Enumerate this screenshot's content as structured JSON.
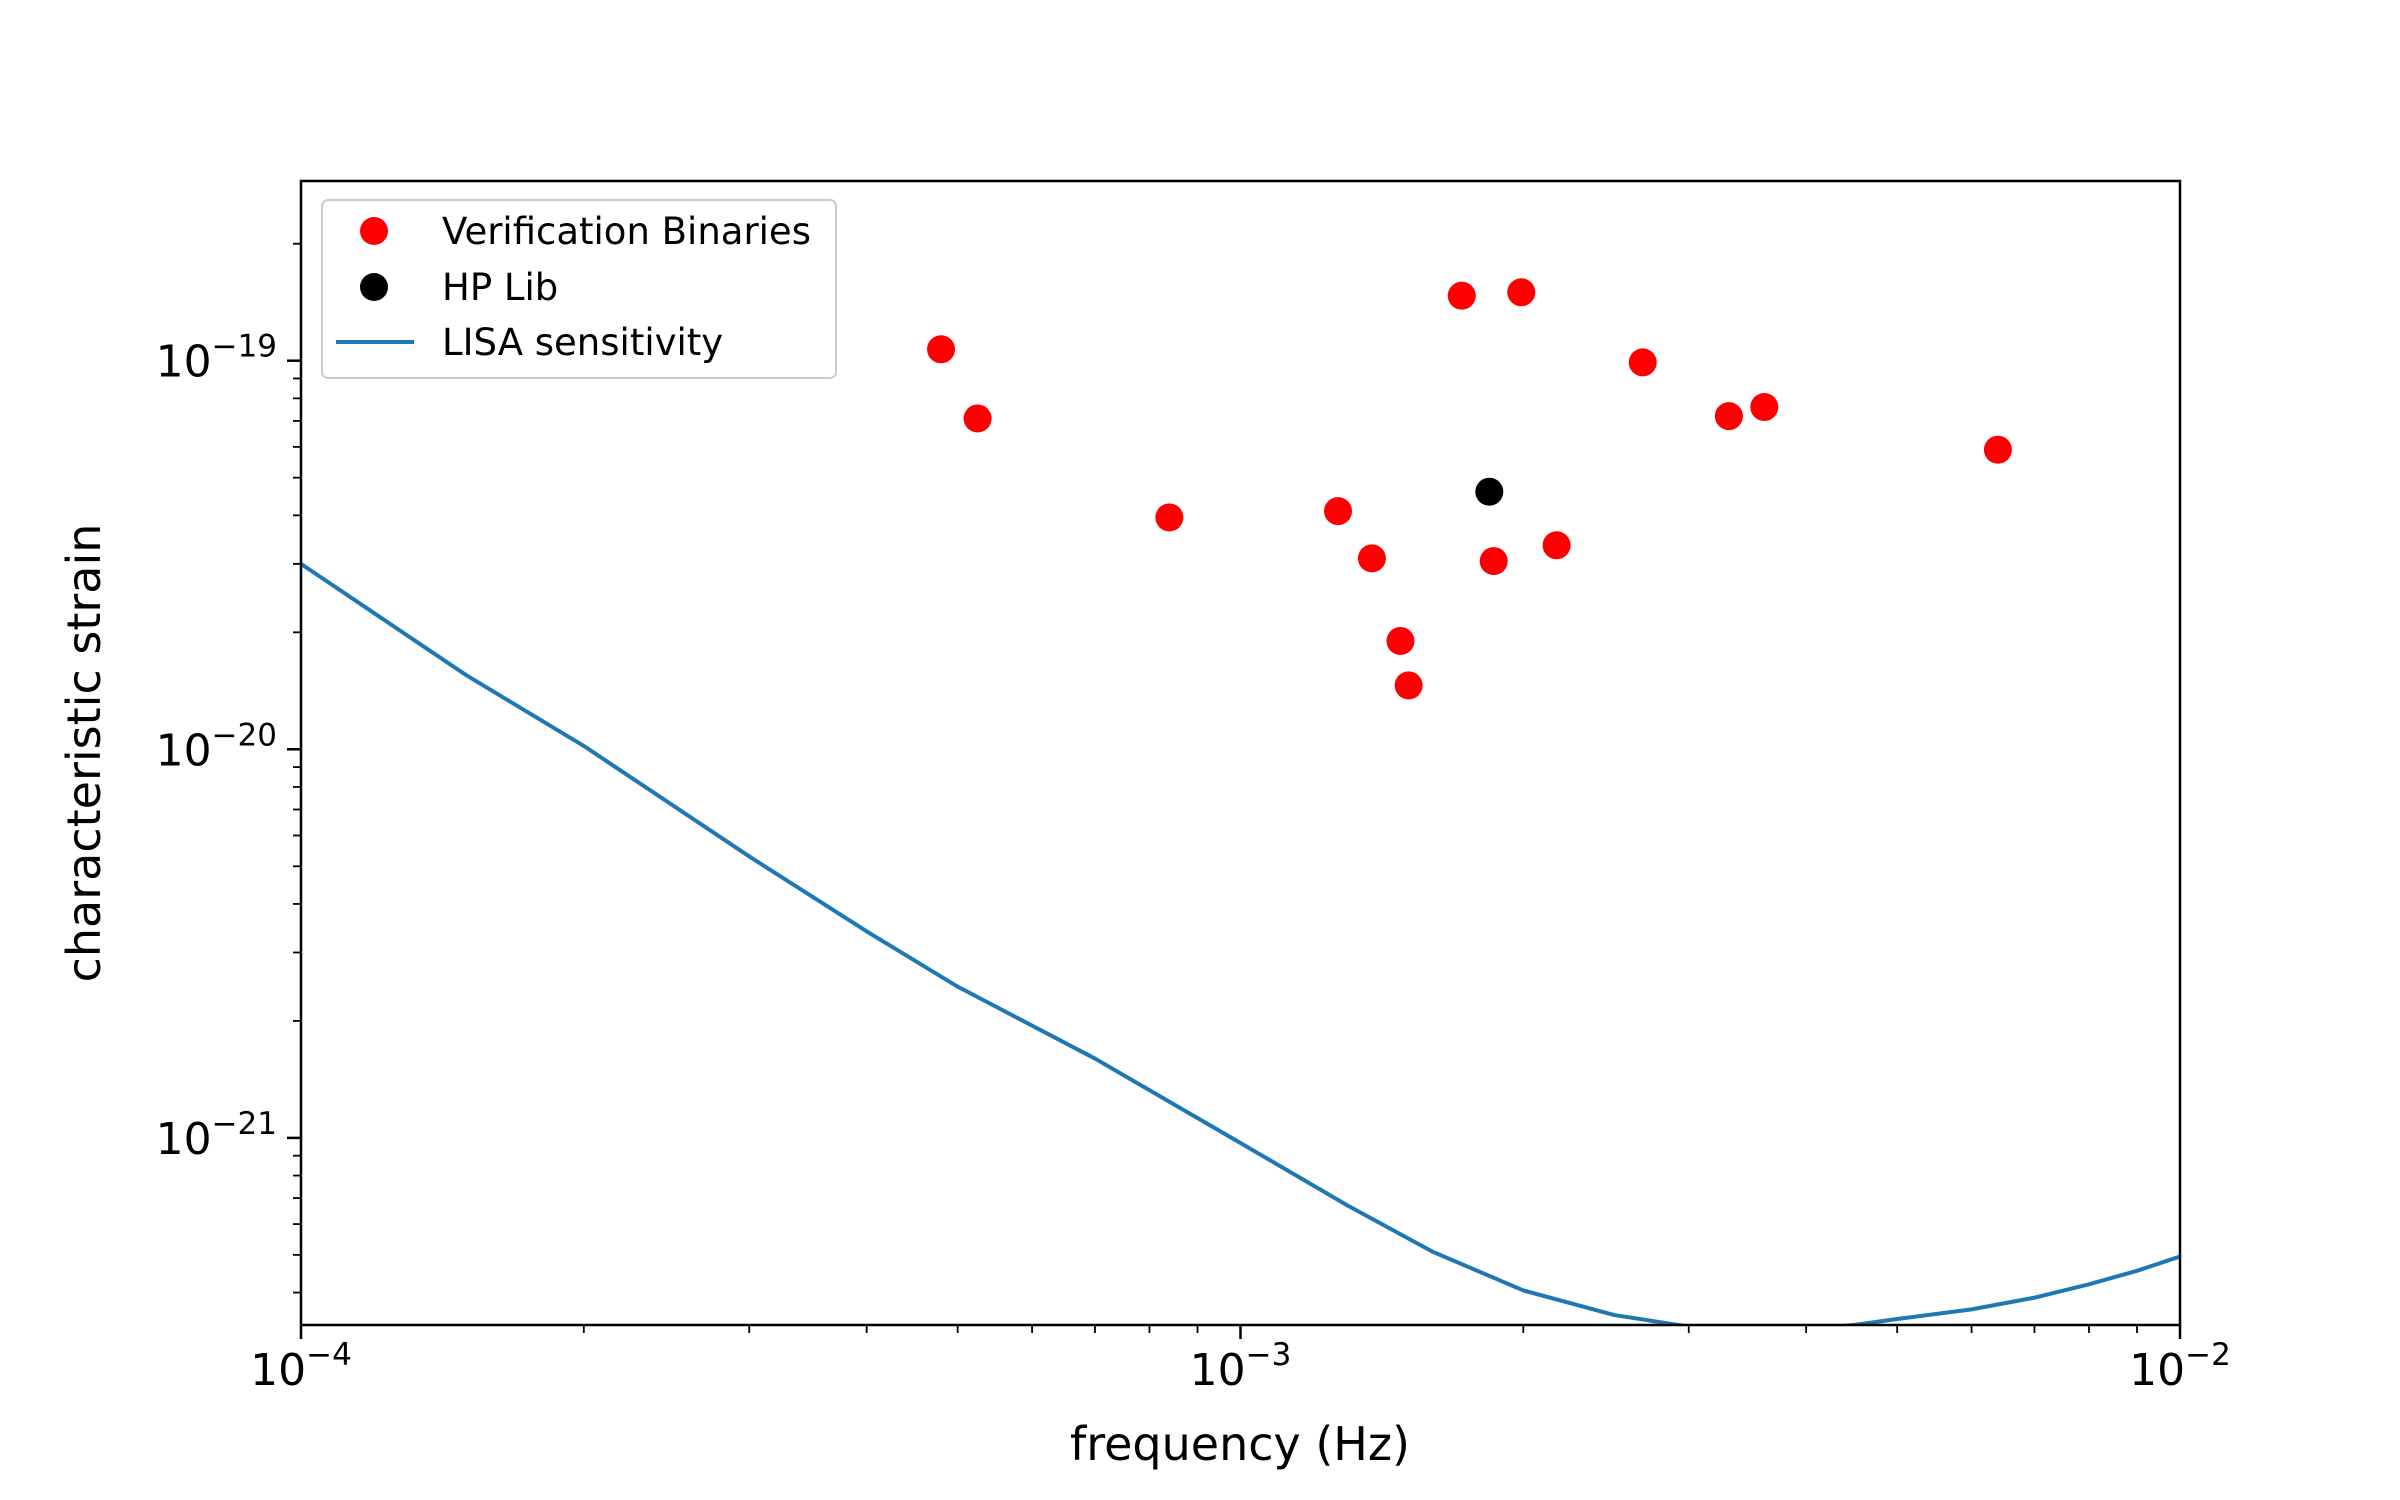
{
  "chart_data": {
    "type": "scatter",
    "xscale": "log",
    "yscale": "log",
    "xlim": [
      0.0001,
      0.01
    ],
    "ylim": [
      3.3e-22,
      2.9e-19
    ],
    "xlabel": "frequency (Hz)",
    "ylabel": "characteristic strain",
    "x_ticks": [
      {
        "base": "10",
        "exp": "−4",
        "value": 0.0001
      },
      {
        "base": "10",
        "exp": "−3",
        "value": 0.001
      },
      {
        "base": "10",
        "exp": "−2",
        "value": 0.01
      }
    ],
    "y_ticks": [
      {
        "base": "10",
        "exp": "−21",
        "value": 1e-21
      },
      {
        "base": "10",
        "exp": "−20",
        "value": 1e-20
      },
      {
        "base": "10",
        "exp": "−19",
        "value": 1e-19
      }
    ],
    "grid": false,
    "legend": {
      "placement": "top-left"
    },
    "series": [
      {
        "name": "Verification Binaries",
        "kind": "scatter",
        "color": "#ff0000",
        "points": [
          [
            0.00048,
            1.07e-19
          ],
          [
            0.000525,
            7.1e-20
          ],
          [
            0.00084,
            3.95e-20
          ],
          [
            0.00127,
            4.1e-20
          ],
          [
            0.00138,
            3.1e-20
          ],
          [
            0.00148,
            1.9e-20
          ],
          [
            0.00151,
            1.46e-20
          ],
          [
            0.00172,
            1.47e-19
          ],
          [
            0.00186,
            3.05e-20
          ],
          [
            0.00199,
            1.5e-19
          ],
          [
            0.00217,
            3.35e-20
          ],
          [
            0.00268,
            9.9e-20
          ],
          [
            0.00331,
            7.2e-20
          ],
          [
            0.00361,
            7.6e-20
          ],
          [
            0.0064,
            5.9e-20
          ]
        ]
      },
      {
        "name": "HP Lib",
        "kind": "scatter",
        "color": "#000000",
        "points": [
          [
            0.00184,
            4.6e-20
          ]
        ]
      },
      {
        "name": "LISA sensitivity",
        "kind": "line",
        "color": "#1f77b4",
        "points": [
          [
            0.0001,
            3e-20
          ],
          [
            0.00015,
            1.55e-20
          ],
          [
            0.0002,
            1.02e-20
          ],
          [
            0.0003,
            5.3e-21
          ],
          [
            0.0004,
            3.4e-21
          ],
          [
            0.0005,
            2.45e-21
          ],
          [
            0.0007,
            1.6e-21
          ],
          [
            0.001,
            9.7e-22
          ],
          [
            0.0013,
            6.7e-22
          ],
          [
            0.0016,
            5.1e-22
          ],
          [
            0.002,
            4.05e-22
          ],
          [
            0.0025,
            3.5e-22
          ],
          [
            0.003,
            3.27e-22
          ],
          [
            0.0035,
            3.2e-22
          ],
          [
            0.004,
            3.23e-22
          ],
          [
            0.0045,
            3.3e-22
          ],
          [
            0.005,
            3.42e-22
          ],
          [
            0.006,
            3.62e-22
          ],
          [
            0.007,
            3.88e-22
          ],
          [
            0.008,
            4.2e-22
          ],
          [
            0.009,
            4.55e-22
          ],
          [
            0.01,
            4.95e-22
          ]
        ]
      }
    ]
  }
}
